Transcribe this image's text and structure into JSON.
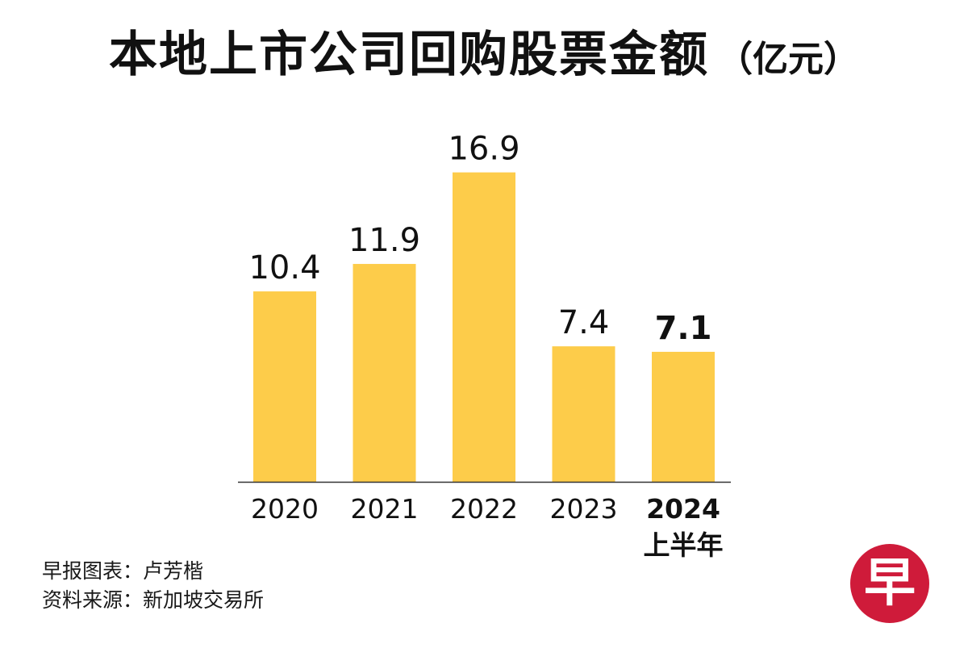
{
  "title": {
    "main": "本地上市公司回购股票金额",
    "unit": "（亿元）"
  },
  "chart_data": {
    "type": "bar",
    "title": "本地上市公司回购股票金额（亿元）",
    "categories": [
      "2020",
      "2021",
      "2022",
      "2023",
      "2024"
    ],
    "category_sublabels": [
      "",
      "",
      "",
      "",
      "上半年"
    ],
    "values": [
      10.4,
      11.9,
      16.9,
      7.4,
      7.1
    ],
    "value_labels": [
      "10.4",
      "11.9",
      "16.9",
      "7.4",
      "7.1"
    ],
    "highlight_index": 4,
    "ylim": [
      0,
      17.5
    ],
    "grid": false,
    "legend": "none",
    "bar_color": "#FDCC4A",
    "axis_color": "#333333"
  },
  "credits": {
    "chart_by": "早报图表：卢芳楷",
    "source": "资料来源：新加坡交易所"
  },
  "logo": {
    "glyph": "早",
    "color": "#CF1B3A"
  }
}
